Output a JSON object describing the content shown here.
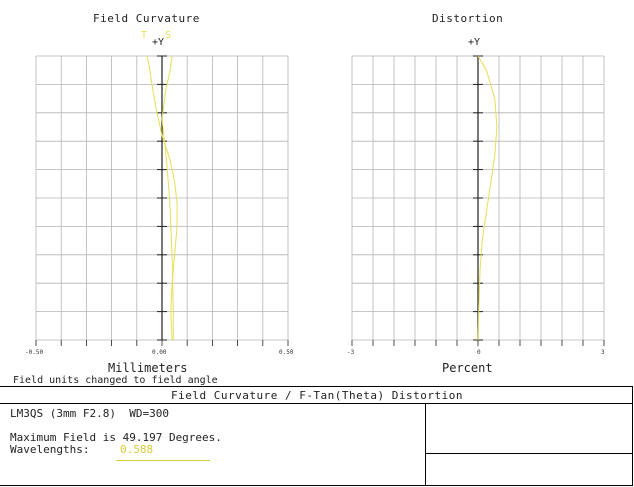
{
  "colors": {
    "grid": "#b4b4b4",
    "axis": "#222222",
    "curve": "#e6df55",
    "wavelength": "#d8cc3a"
  },
  "chart_data": [
    {
      "type": "line",
      "title": "Field Curvature",
      "axis_top_label": "+Y",
      "legend": [
        "T",
        "S"
      ],
      "xlabel": "Millimeters",
      "xlim": [
        -0.5,
        0.5
      ],
      "ylim": [
        0,
        1
      ],
      "x_ticks": [
        "-0.50",
        "0.00",
        "0.50"
      ],
      "grid": true,
      "series": [
        {
          "name": "T",
          "points": [
            [
              -0.06,
              1.0
            ],
            [
              -0.05,
              0.96
            ],
            [
              -0.04,
              0.9
            ],
            [
              -0.02,
              0.8
            ],
            [
              0.0,
              0.72
            ],
            [
              0.03,
              0.64
            ],
            [
              0.05,
              0.56
            ],
            [
              0.06,
              0.48
            ],
            [
              0.06,
              0.4
            ],
            [
              0.05,
              0.3
            ],
            [
              0.04,
              0.2
            ],
            [
              0.035,
              0.1
            ],
            [
              0.04,
              0.0
            ]
          ]
        },
        {
          "name": "S",
          "points": [
            [
              0.04,
              1.0
            ],
            [
              0.03,
              0.94
            ],
            [
              0.015,
              0.88
            ],
            [
              0.0,
              0.78
            ],
            [
              0.015,
              0.66
            ],
            [
              0.03,
              0.5
            ],
            [
              0.04,
              0.3
            ],
            [
              0.045,
              0.1
            ],
            [
              0.045,
              0.0
            ]
          ]
        }
      ]
    },
    {
      "type": "line",
      "title": "Distortion",
      "axis_top_label": "+Y",
      "xlabel": "Percent",
      "xlim": [
        -3,
        3
      ],
      "ylim": [
        0,
        1
      ],
      "x_ticks": [
        "-3",
        "0",
        "3"
      ],
      "grid": true,
      "series": [
        {
          "name": "distortion",
          "points": [
            [
              0.0,
              1.0
            ],
            [
              0.2,
              0.95
            ],
            [
              0.4,
              0.85
            ],
            [
              0.45,
              0.75
            ],
            [
              0.4,
              0.65
            ],
            [
              0.3,
              0.55
            ],
            [
              0.2,
              0.45
            ],
            [
              0.1,
              0.35
            ],
            [
              0.05,
              0.25
            ],
            [
              0.02,
              0.12
            ],
            [
              0.0,
              0.0
            ]
          ]
        }
      ]
    }
  ],
  "notes": {
    "field_units": "Field units changed to field angle"
  },
  "report": {
    "title": "Field Curvature / F-Tan(Theta) Distortion",
    "lens_line": "LM3QS (3mm F2.8)  WD=300",
    "max_field": "Maximum Field is 49.197 Degrees.",
    "wavelengths_label": "Wavelengths:",
    "wavelengths_value": "0.588"
  }
}
